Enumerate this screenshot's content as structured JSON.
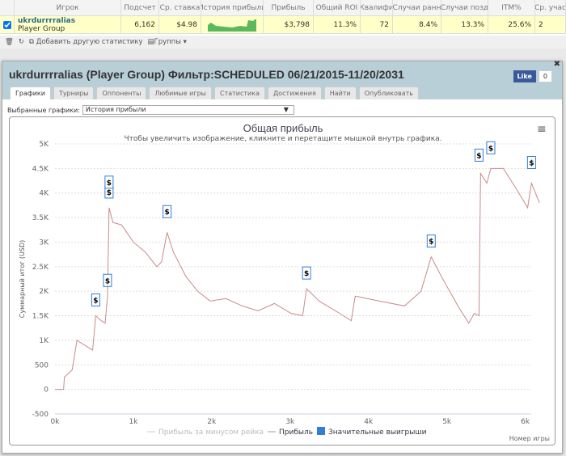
{
  "table": {
    "headers": [
      "",
      "Игрок",
      "Подсчет",
      "Ср. ставка",
      "История прибыли",
      "Прибыль",
      "Общий ROI",
      "Квалифи",
      "Случаи ранн",
      "Случаи позд",
      "ITM%",
      "Ср. учас"
    ],
    "row": {
      "checked": true,
      "player": "ukrdurrrralias",
      "group": "Player Group",
      "count": "6,162",
      "avg_stake": "$4.98",
      "profit": "$3,798",
      "roi": "11.3%",
      "qual": "72",
      "early": "8.4%",
      "late": "13.3%",
      "itm": "25.6%",
      "avg_part": "2"
    }
  },
  "toolbar": {
    "add_stat": "Добавить другую статистику",
    "groups": "Группы"
  },
  "panel": {
    "title": "ukrdurrrralias (Player Group) Фильтр:SCHEDULED 06/21/2015-11/20/2031",
    "like": "Like",
    "like_count": "0",
    "tabs": [
      "Графики",
      "Турниры",
      "Оппоненты",
      "Любимые игры",
      "Статистика",
      "Достижения",
      "Найти",
      "Опубликовать"
    ],
    "active_tab": 0,
    "select_label": "Выбранные графики:",
    "select_value": "История прибыли"
  },
  "chart_data": {
    "type": "line",
    "title": "Общая прибыль",
    "subtitle": "Чтобы увеличить изображение, кликните и перетащите мышкой внутрь графика.",
    "ylabel": "Суммарный итог (USD)",
    "xlabel": "Номер игры",
    "ylim": [
      -500,
      5000
    ],
    "xlim": [
      0,
      6200
    ],
    "yticks": [
      "-500",
      "0",
      "500",
      "1K",
      "1.5K",
      "2K",
      "2.5K",
      "3K",
      "3.5K",
      "4K",
      "4.5K",
      "5K"
    ],
    "xticks": [
      "0k",
      "1k",
      "2k",
      "3k",
      "4k",
      "5k",
      "6k"
    ],
    "grid": true,
    "legend": [
      "Прибыль за минусом рейка",
      "Прибыль",
      "Значительные выигрыши"
    ],
    "color": "#c98a8a",
    "flag_color": "#2f7ed8",
    "x": [
      0,
      110,
      120,
      220,
      280,
      330,
      430,
      480,
      520,
      590,
      640,
      670,
      690,
      740,
      850,
      1000,
      1150,
      1300,
      1360,
      1430,
      1510,
      1670,
      1820,
      1980,
      2180,
      2390,
      2590,
      2800,
      3010,
      3160,
      3210,
      3370,
      3630,
      3780,
      3830,
      4140,
      4460,
      4670,
      4800,
      4930,
      5140,
      5280,
      5350,
      5410,
      5430,
      5510,
      5560,
      5720,
      5880,
      6030,
      6080,
      6180
    ],
    "y": [
      0,
      0,
      250,
      400,
      1000,
      950,
      850,
      800,
      1500,
      1400,
      1350,
      1900,
      3700,
      3400,
      3350,
      3000,
      2800,
      2500,
      2600,
      3200,
      2800,
      2300,
      2000,
      1800,
      1850,
      1700,
      1600,
      1750,
      1550,
      1500,
      2050,
      1800,
      1550,
      1400,
      1900,
      1800,
      1700,
      2000,
      2700,
      2300,
      1700,
      1350,
      1550,
      1500,
      4400,
      4200,
      4500,
      4500,
      4100,
      3700,
      4200,
      3800
    ],
    "flags": [
      {
        "x": 520,
        "y": 1500
      },
      {
        "x": 670,
        "y": 1900
      },
      {
        "x": 690,
        "y": 3700
      },
      {
        "x": 690,
        "y": 3900
      },
      {
        "x": 1430,
        "y": 3300
      },
      {
        "x": 3210,
        "y": 2050
      },
      {
        "x": 4800,
        "y": 2700
      },
      {
        "x": 5410,
        "y": 4450
      },
      {
        "x": 5560,
        "y": 4600
      },
      {
        "x": 6080,
        "y": 4300
      }
    ],
    "flag_text": "$"
  }
}
